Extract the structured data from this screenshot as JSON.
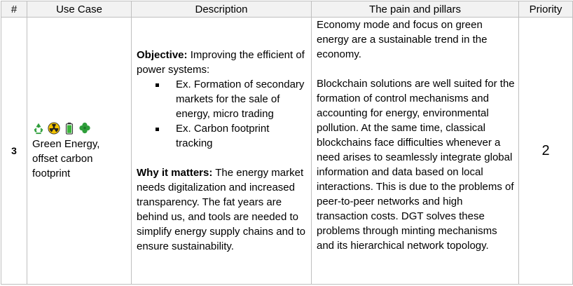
{
  "headers": {
    "num": "#",
    "use_case": "Use Case",
    "description": "Description",
    "pain": "The pain and pillars",
    "priority": "Priority"
  },
  "row": {
    "num": "3",
    "icons": [
      "recycle-icon",
      "radioactive-icon",
      "battery-icon",
      "clover-icon"
    ],
    "use_case": "Green Energy, offset carbon footprint",
    "objective_label": "Objective:",
    "objective_text": " Improving the efficient of power systems:",
    "bullets": [
      "Ex. Formation of secondary markets for the sale of energy, micro trading",
      "Ex. Carbon footprint tracking"
    ],
    "why_label": "Why it matters:",
    "why_text": " The energy market needs digitalization and increased transparency. The fat years are behind us, and tools are needed to simplify energy supply chains and to ensure sustainability.",
    "pain_p1": "Economy mode and focus on green energy are a sustainable trend in the economy.",
    "pain_p2": "Blockchain solutions are well suited for the formation of control mechanisms and accounting for energy, environmental pollution. At the same time, classical blockchains face difficulties whenever a need arises to seamlessly integrate global information and data based on local interactions. This is due to the problems of peer-to-peer networks and high transaction costs. DGT solves these problems through minting mechanisms and its hierarchical network topology.",
    "priority": "2"
  },
  "colors": {
    "header_bg": "#f2f2f2",
    "border": "#bfbfbf",
    "green": "#2e9e3a",
    "yellow": "#f5c400"
  }
}
